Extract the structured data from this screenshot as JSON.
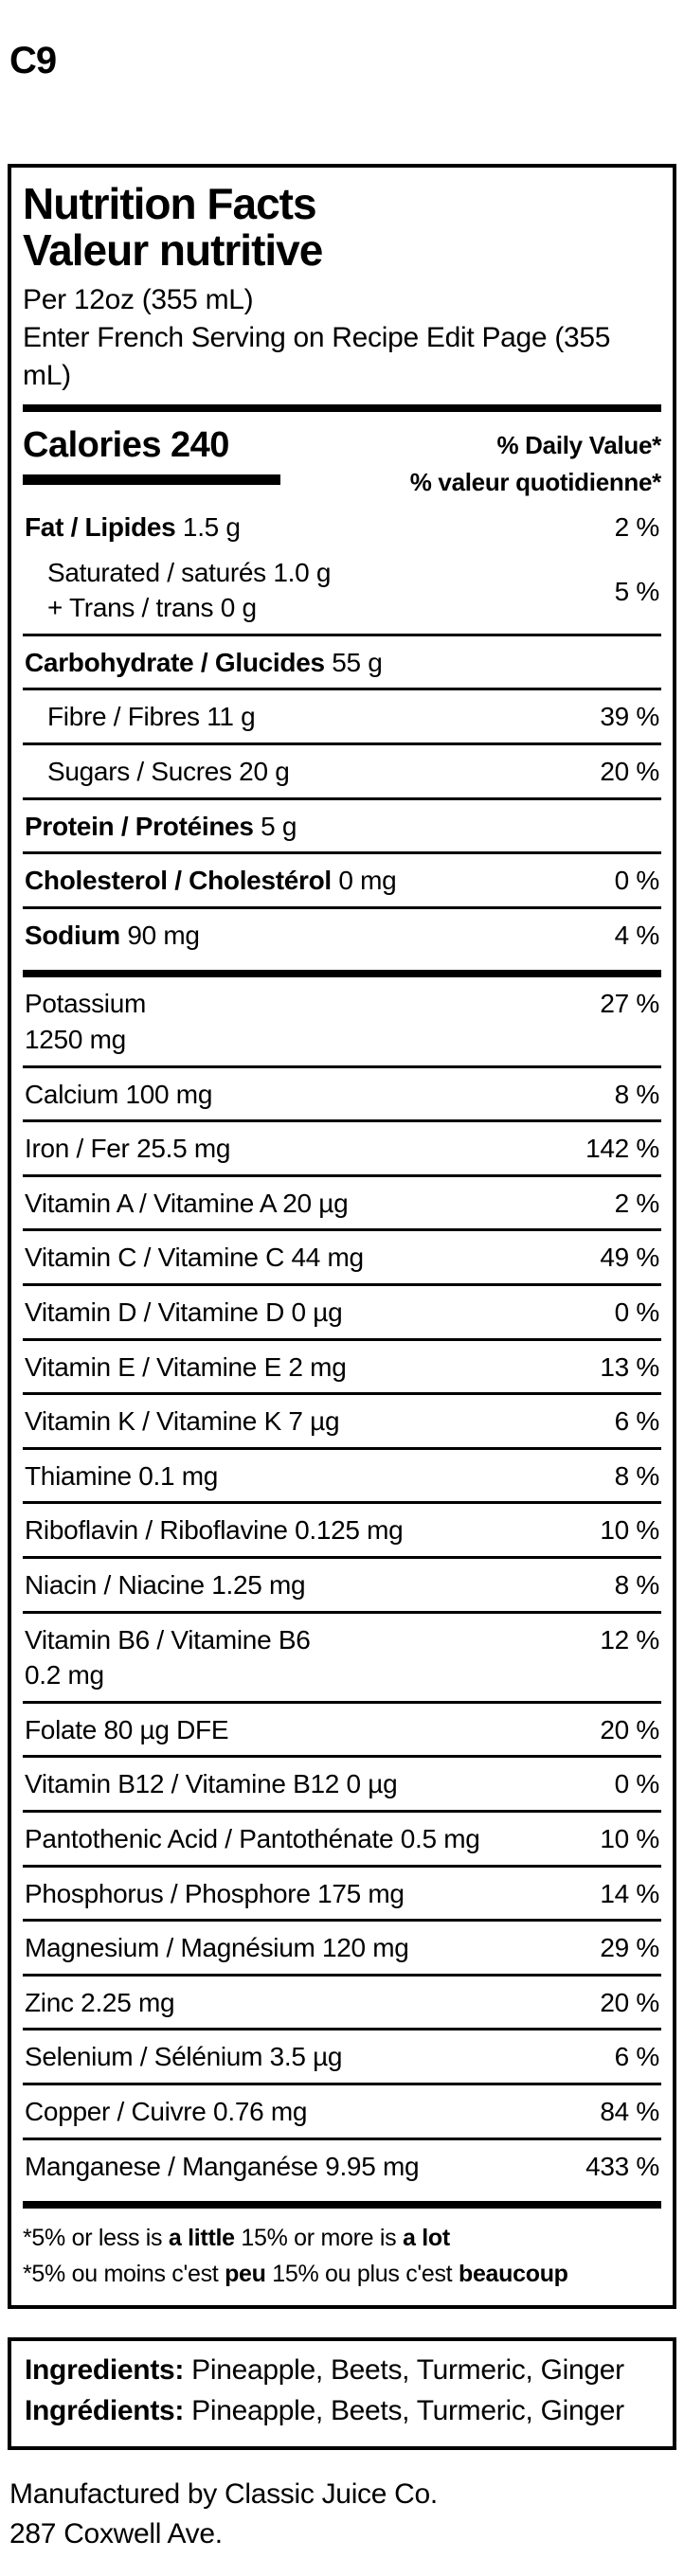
{
  "page": {
    "heading": "C9"
  },
  "label": {
    "title_en": "Nutrition Facts",
    "title_fr": "Valeur nutritive",
    "serving_en": "Per 12oz (355 mL)",
    "serving_fr": "Enter French Serving on Recipe Edit Page (355 mL)",
    "calories_label": "Calories",
    "calories_value": "240",
    "dv_header_en": "% Daily Value*",
    "dv_header_fr": "% valeur quotidienne*",
    "colors": {
      "text": "#000000",
      "background": "#ffffff"
    },
    "main_rows": [
      {
        "bold": "Fat / Lipides",
        "lines": [
          " 1.5 g"
        ],
        "pct": "2 %"
      },
      {
        "indent": true,
        "no_divider": true,
        "pct_center": true,
        "lines": [
          "Saturated / saturés 1.0 g",
          "+ Trans / trans 0 g"
        ],
        "pct": "5 %"
      },
      {
        "bold": "Carbohydrate / Glucides",
        "lines": [
          " 55 g"
        ],
        "pct": null
      },
      {
        "indent": true,
        "lines": [
          "Fibre / Fibres 11 g"
        ],
        "pct": "39 %"
      },
      {
        "indent": true,
        "lines": [
          "Sugars / Sucres 20 g"
        ],
        "pct": "20 %"
      },
      {
        "bold": "Protein / Protéines",
        "lines": [
          " 5 g"
        ],
        "pct": null
      },
      {
        "bold": "Cholesterol / Cholestérol",
        "lines": [
          " 0 mg"
        ],
        "pct": "0 %"
      },
      {
        "bold": "Sodium",
        "lines": [
          " 90 mg"
        ],
        "pct": "4 %"
      }
    ],
    "micro_rows": [
      {
        "lines": [
          "Potassium",
          "1250 mg"
        ],
        "pct": "27 %"
      },
      {
        "lines": [
          "Calcium 100 mg"
        ],
        "pct": "8 %"
      },
      {
        "lines": [
          "Iron / Fer 25.5 mg"
        ],
        "pct": "142 %"
      },
      {
        "lines": [
          "Vitamin A / Vitamine A 20 µg"
        ],
        "pct": "2 %"
      },
      {
        "lines": [
          "Vitamin C / Vitamine C 44 mg"
        ],
        "pct": "49 %"
      },
      {
        "lines": [
          "Vitamin D / Vitamine D 0 µg"
        ],
        "pct": "0 %"
      },
      {
        "lines": [
          "Vitamin E / Vitamine E 2 mg"
        ],
        "pct": "13 %"
      },
      {
        "lines": [
          "Vitamin K / Vitamine K 7 µg"
        ],
        "pct": "6 %"
      },
      {
        "lines": [
          "Thiamine 0.1 mg"
        ],
        "pct": "8 %"
      },
      {
        "lines": [
          "Riboflavin / Riboflavine 0.125 mg"
        ],
        "pct": "10 %"
      },
      {
        "lines": [
          "Niacin / Niacine 1.25 mg"
        ],
        "pct": "8 %"
      },
      {
        "lines": [
          "Vitamin B6 / Vitamine B6",
          "0.2 mg"
        ],
        "pct": "12 %"
      },
      {
        "lines": [
          "Folate 80 µg DFE"
        ],
        "pct": "20 %"
      },
      {
        "lines": [
          "Vitamin B12 / Vitamine B12 0 µg"
        ],
        "pct": "0 %"
      },
      {
        "lines": [
          "Pantothenic Acid / Pantothénate 0.5 mg"
        ],
        "pct": "10 %"
      },
      {
        "lines": [
          "Phosphorus / Phosphore 175 mg"
        ],
        "pct": "14 %"
      },
      {
        "lines": [
          "Magnesium / Magnésium 120 mg"
        ],
        "pct": "29 %"
      },
      {
        "lines": [
          "Zinc 2.25 mg"
        ],
        "pct": "20 %"
      },
      {
        "lines": [
          "Selenium / Sélénium 3.5 µg"
        ],
        "pct": "6 %"
      },
      {
        "lines": [
          "Copper / Cuivre 0.76 mg"
        ],
        "pct": "84 %"
      },
      {
        "lines": [
          "Manganese / Manganése 9.95 mg"
        ],
        "pct": "433 %"
      }
    ],
    "footnote_en": {
      "p1": "*5% or less is ",
      "p2": "a little",
      "p3": " 15% or more is ",
      "p4": "a lot"
    },
    "footnote_fr": {
      "p1": "*5% ou moins c'est ",
      "p2": "peu",
      "p3": " 15% ou plus c'est ",
      "p4": "beaucoup"
    }
  },
  "ingredients": {
    "en": {
      "label": "Ingredients:",
      "text": " Pineapple, Beets, Turmeric, Ginger"
    },
    "fr": {
      "label": "Ingrédients:",
      "text": " Pineapple, Beets, Turmeric, Ginger"
    }
  },
  "footer": {
    "line1": "Manufactured by Classic Juice Co.",
    "line2": "287 Coxwell Ave."
  }
}
